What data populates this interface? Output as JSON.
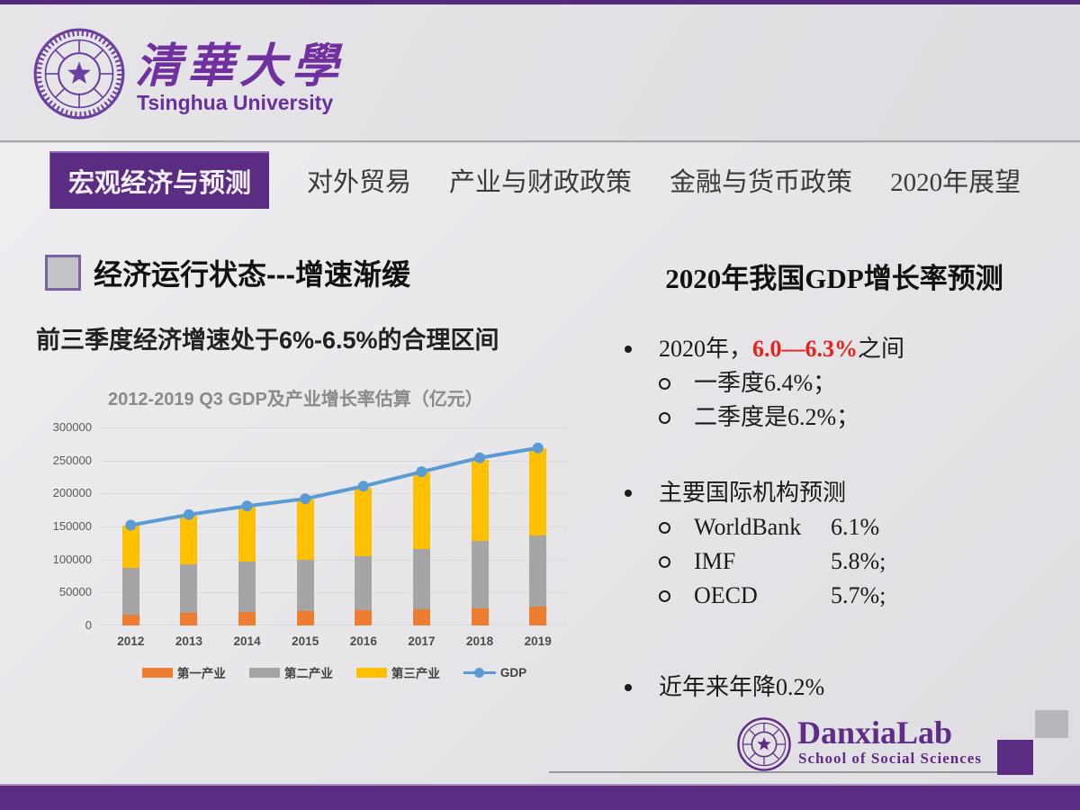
{
  "university": {
    "name_zh": "清華大學",
    "name_en": "Tsinghua University"
  },
  "tabs": {
    "items": [
      {
        "label": "宏观经济与预测",
        "active": true
      },
      {
        "label": "对外贸易"
      },
      {
        "label": "产业与财政政策"
      },
      {
        "label": "金融与货币政策"
      },
      {
        "label": "2020年展望"
      }
    ]
  },
  "left_panel": {
    "heading": "经济运行状态---增速渐缓",
    "subheading": "前三季度经济增速处于6%-6.5%的合理区间"
  },
  "chart_data": {
    "type": "bar",
    "stacked": true,
    "title": "2012-2019 Q3 GDP及产业增长率估算（亿元）",
    "categories": [
      "2012",
      "2013",
      "2014",
      "2015",
      "2016",
      "2017",
      "2018",
      "2019"
    ],
    "series": [
      {
        "name": "第一产业",
        "type": "bar",
        "color": "#ED7D31",
        "values": [
          16000,
          19000,
          20500,
          22000,
          23000,
          24500,
          26500,
          29000
        ]
      },
      {
        "name": "第二产业",
        "type": "bar",
        "color": "#A5A5A5",
        "values": [
          71000,
          74000,
          77000,
          78000,
          82000,
          92000,
          102000,
          108000
        ]
      },
      {
        "name": "第三产业",
        "type": "bar",
        "color": "#FFC000",
        "values": [
          65000,
          74000,
          82000,
          91500,
          104000,
          115000,
          123000,
          131000
        ]
      },
      {
        "name": "GDP",
        "type": "line",
        "color": "#5B9BD5",
        "values": [
          152000,
          168000,
          181000,
          192000,
          211000,
          233000,
          254000,
          269000
        ]
      }
    ],
    "xlabel": "",
    "ylabel": "",
    "ylim": [
      0,
      300000
    ],
    "yticks": [
      0,
      50000,
      100000,
      150000,
      200000,
      250000,
      300000
    ],
    "grid": true,
    "legend_position": "bottom"
  },
  "right_panel": {
    "title": "2020年我国GDP增长率预测",
    "bullet1": {
      "prefix": "2020年，",
      "highlight": "6.0—6.3%",
      "suffix": "之间",
      "sub1": "一季度6.4%；",
      "sub2": "二季度是6.2%；"
    },
    "bullet2": {
      "label": "主要国际机构预测",
      "orgs": [
        {
          "name": "WorldBank",
          "value": "6.1%"
        },
        {
          "name": "IMF",
          "value": "5.8%;"
        },
        {
          "name": "OECD",
          "value": "5.7%;"
        }
      ]
    },
    "bullet3": "近年来年降0.2%"
  },
  "footer": {
    "lab_name": "DanxiaLab",
    "lab_subtitle": "School of Social Sciences"
  },
  "colors": {
    "brand_purple": "#5b2d82",
    "logo_purple": "#7030a0",
    "highlight_red": "#e8231d",
    "bar_primary": "#ED7D31",
    "bar_secondary": "#A5A5A5",
    "bar_tertiary": "#FFC000",
    "gdp_line_blue": "#5B9BD5"
  }
}
